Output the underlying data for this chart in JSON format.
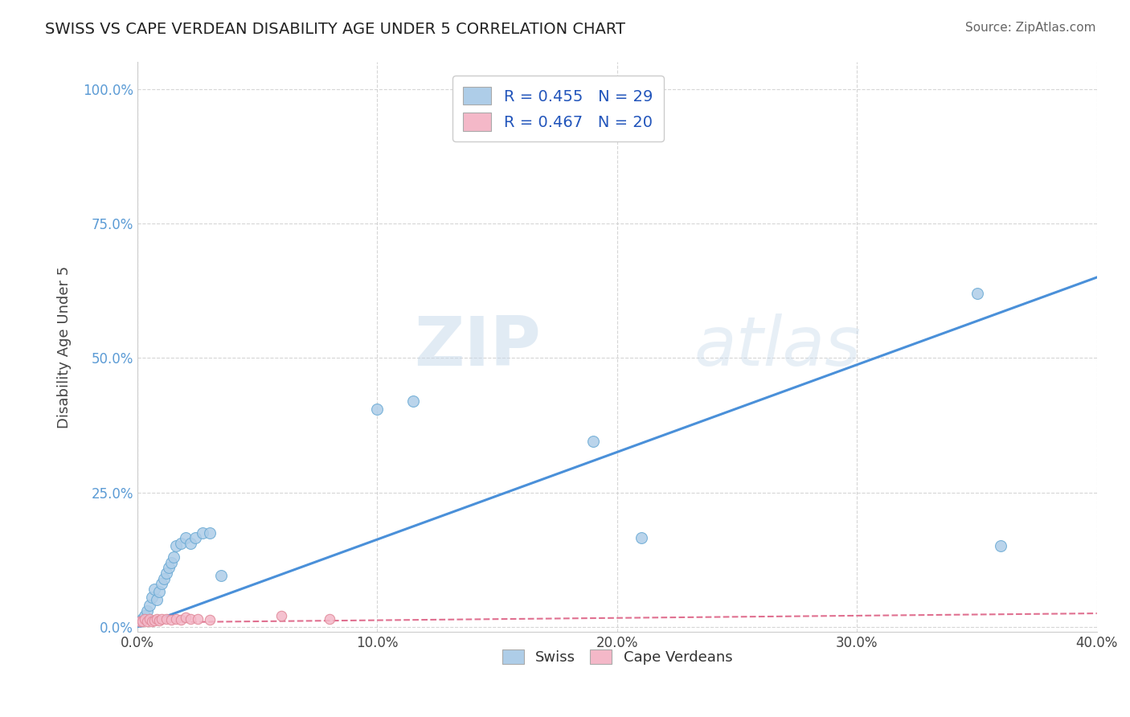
{
  "title": "SWISS VS CAPE VERDEAN DISABILITY AGE UNDER 5 CORRELATION CHART",
  "source": "Source: ZipAtlas.com",
  "xlabel": "",
  "ylabel": "Disability Age Under 5",
  "xlim": [
    0.0,
    0.4
  ],
  "ylim": [
    -0.01,
    1.05
  ],
  "xtick_labels": [
    "0.0%",
    "10.0%",
    "20.0%",
    "30.0%",
    "40.0%"
  ],
  "xtick_values": [
    0.0,
    0.1,
    0.2,
    0.3,
    0.4
  ],
  "ytick_labels": [
    "0.0%",
    "25.0%",
    "50.0%",
    "75.0%",
    "100.0%"
  ],
  "ytick_values": [
    0.0,
    0.25,
    0.5,
    0.75,
    1.0
  ],
  "swiss_color": "#aecde8",
  "swiss_edge_color": "#6aaad4",
  "cape_color": "#f4b8c8",
  "cape_edge_color": "#e08898",
  "swiss_line_color": "#4a90d9",
  "cape_line_color": "#e07090",
  "R_swiss": 0.455,
  "N_swiss": 29,
  "R_cape": 0.467,
  "N_cape": 20,
  "swiss_x": [
    0.001,
    0.002,
    0.003,
    0.004,
    0.005,
    0.006,
    0.007,
    0.008,
    0.009,
    0.01,
    0.011,
    0.012,
    0.013,
    0.014,
    0.015,
    0.016,
    0.018,
    0.02,
    0.022,
    0.024,
    0.027,
    0.03,
    0.035,
    0.1,
    0.115,
    0.19,
    0.21,
    0.35,
    0.36
  ],
  "swiss_y": [
    0.01,
    0.015,
    0.02,
    0.03,
    0.04,
    0.055,
    0.07,
    0.05,
    0.065,
    0.08,
    0.09,
    0.1,
    0.11,
    0.12,
    0.13,
    0.15,
    0.155,
    0.165,
    0.155,
    0.165,
    0.175,
    0.175,
    0.095,
    0.405,
    0.42,
    0.345,
    0.165,
    0.62,
    0.15
  ],
  "cape_x": [
    0.001,
    0.002,
    0.003,
    0.004,
    0.005,
    0.006,
    0.007,
    0.008,
    0.009,
    0.01,
    0.012,
    0.014,
    0.016,
    0.018,
    0.02,
    0.022,
    0.025,
    0.03,
    0.06,
    0.08
  ],
  "cape_y": [
    0.01,
    0.01,
    0.015,
    0.01,
    0.015,
    0.01,
    0.012,
    0.015,
    0.012,
    0.015,
    0.015,
    0.013,
    0.015,
    0.013,
    0.018,
    0.015,
    0.015,
    0.013,
    0.02,
    0.015
  ],
  "swiss_line_x0": 0.0,
  "swiss_line_y0": 0.0,
  "swiss_line_x1": 0.4,
  "swiss_line_y1": 0.65,
  "cape_line_x0": 0.0,
  "cape_line_y0": 0.008,
  "cape_line_x1": 0.4,
  "cape_line_y1": 0.025,
  "background_color": "#ffffff",
  "grid_color": "#cccccc",
  "watermark_zip": "ZIP",
  "watermark_atlas": "atlas",
  "legend_labels": [
    "Swiss",
    "Cape Verdeans"
  ]
}
